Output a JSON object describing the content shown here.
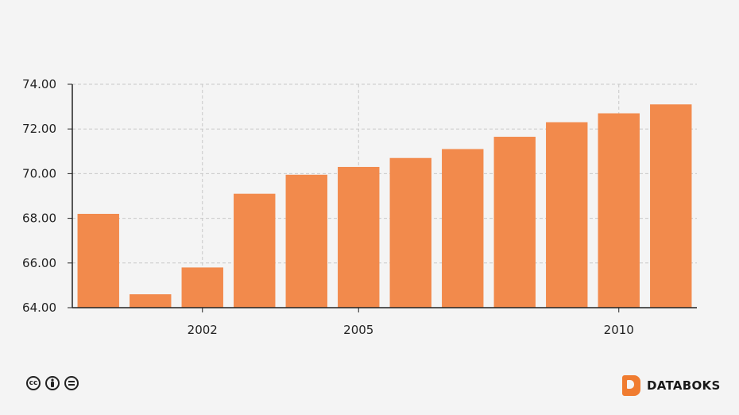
{
  "chart_data": {
    "type": "bar",
    "x_ticks": [
      {
        "year": 2002,
        "label": "2002"
      },
      {
        "year": 2005,
        "label": "2005"
      },
      {
        "year": 2010,
        "label": "2010"
      }
    ],
    "bars": [
      {
        "year": 2000,
        "value": 68.2
      },
      {
        "year": 2001,
        "value": 64.6
      },
      {
        "year": 2002,
        "value": 65.8
      },
      {
        "year": 2003,
        "value": 69.1
      },
      {
        "year": 2004,
        "value": 69.95
      },
      {
        "year": 2005,
        "value": 70.3
      },
      {
        "year": 2006,
        "value": 70.7
      },
      {
        "year": 2007,
        "value": 71.1
      },
      {
        "year": 2008,
        "value": 71.65
      },
      {
        "year": 2009,
        "value": 72.3
      },
      {
        "year": 2010,
        "value": 72.7
      },
      {
        "year": 2011,
        "value": 73.1
      }
    ],
    "y_ticks": [
      "64.00",
      "66.00",
      "68.00",
      "70.00",
      "72.00",
      "74.00"
    ],
    "ylim": [
      64,
      74
    ],
    "grid": true,
    "bar_color": "#f28a4c"
  },
  "footer": {
    "license_icons": [
      "cc-icon",
      "attribution-icon",
      "no-derivatives-icon"
    ],
    "brand": "DATABOKS",
    "brand_color": "#f07c30"
  }
}
